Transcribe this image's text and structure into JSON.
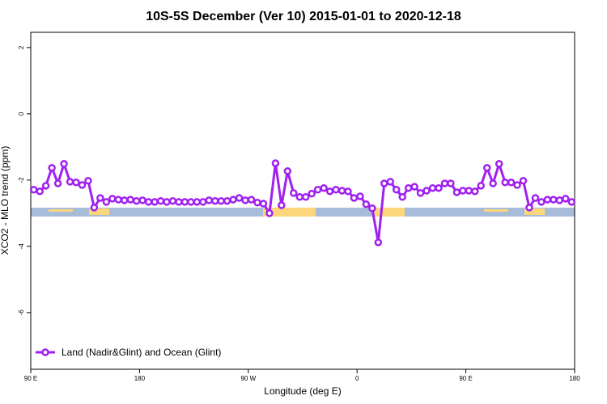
{
  "chart_data": {
    "type": "line",
    "title": "10S-5S December (Ver 10)   2015-01-01 to 2020-12-18",
    "x_label": "Longitude (deg E)",
    "y_label": "XCO2 - MLO trend (ppm)",
    "x": [
      92.5,
      97.5,
      102.5,
      107.5,
      112.5,
      117.5,
      122.5,
      127.5,
      132.5,
      137.5,
      142.5,
      147.5,
      152.5,
      157.5,
      162.5,
      167.5,
      172.5,
      177.5,
      182.5,
      187.5,
      192.5,
      197.5,
      202.5,
      207.5,
      212.5,
      217.5,
      222.5,
      227.5,
      232.5,
      237.5,
      242.5,
      247.5,
      252.5,
      257.5,
      262.5,
      267.5,
      272.5,
      277.5,
      282.5,
      287.5,
      292.5,
      297.5,
      302.5,
      307.5,
      312.5,
      317.5,
      322.5,
      327.5,
      332.5,
      337.5,
      342.5,
      347.5,
      352.5,
      357.5,
      362.5,
      367.5,
      372.5,
      377.5,
      382.5,
      387.5,
      392.5,
      397.5,
      402.5,
      407.5,
      412.5,
      417.5,
      422.5,
      427.5,
      432.5,
      437.5,
      442.5,
      447.5,
      452.5,
      457.5,
      462.5,
      467.5,
      472.5,
      477.5,
      482.5,
      487.5,
      492.5,
      497.5,
      502.5,
      507.5,
      512.5,
      517.5,
      522.5,
      527.5,
      532.5,
      537.5
    ],
    "series": [
      {
        "name": "Land (Nadir&Glint) and Ocean (Glint)",
        "color": "#a020f0",
        "values": [
          -2.29,
          -2.34,
          -2.17,
          -1.63,
          -2.1,
          -1.51,
          -2.05,
          -2.07,
          -2.15,
          -2.02,
          -2.83,
          -2.54,
          -2.66,
          -2.56,
          -2.59,
          -2.61,
          -2.59,
          -2.63,
          -2.61,
          -2.66,
          -2.66,
          -2.63,
          -2.66,
          -2.63,
          -2.66,
          -2.66,
          -2.66,
          -2.66,
          -2.66,
          -2.61,
          -2.63,
          -2.63,
          -2.63,
          -2.59,
          -2.54,
          -2.61,
          -2.59,
          -2.68,
          -2.71,
          -3.0,
          -1.49,
          -2.76,
          -1.73,
          -2.39,
          -2.51,
          -2.51,
          -2.41,
          -2.29,
          -2.24,
          -2.34,
          -2.29,
          -2.32,
          -2.34,
          -2.54,
          -2.49,
          -2.73,
          -2.85,
          -3.88,
          -2.1,
          -2.05,
          -2.29,
          -2.51,
          -2.24,
          -2.2,
          -2.39,
          -2.32,
          -2.24,
          -2.24,
          -2.1,
          -2.1,
          -2.37,
          -2.32,
          -2.32,
          -2.34,
          -2.17,
          -1.63,
          -2.1,
          -1.51,
          -2.07,
          -2.07,
          -2.15,
          -2.02,
          -2.83,
          -2.54,
          -2.66,
          -2.59,
          -2.59,
          -2.61,
          -2.56,
          -2.66
        ]
      }
    ],
    "xlim": [
      90,
      540
    ],
    "xticks": [
      {
        "value": 90,
        "label": "90 E"
      },
      180,
      {
        "value": 270,
        "label": "90 W"
      },
      {
        "value": 360,
        "label": "0"
      },
      {
        "value": 450,
        "label": "90 E"
      },
      {
        "value": 540,
        "label": "180"
      }
    ],
    "ylim": [
      -7.71,
      2.46
    ],
    "yticks": [
      -6,
      -4,
      -2,
      0,
      2
    ],
    "legend": "bottom-left"
  }
}
